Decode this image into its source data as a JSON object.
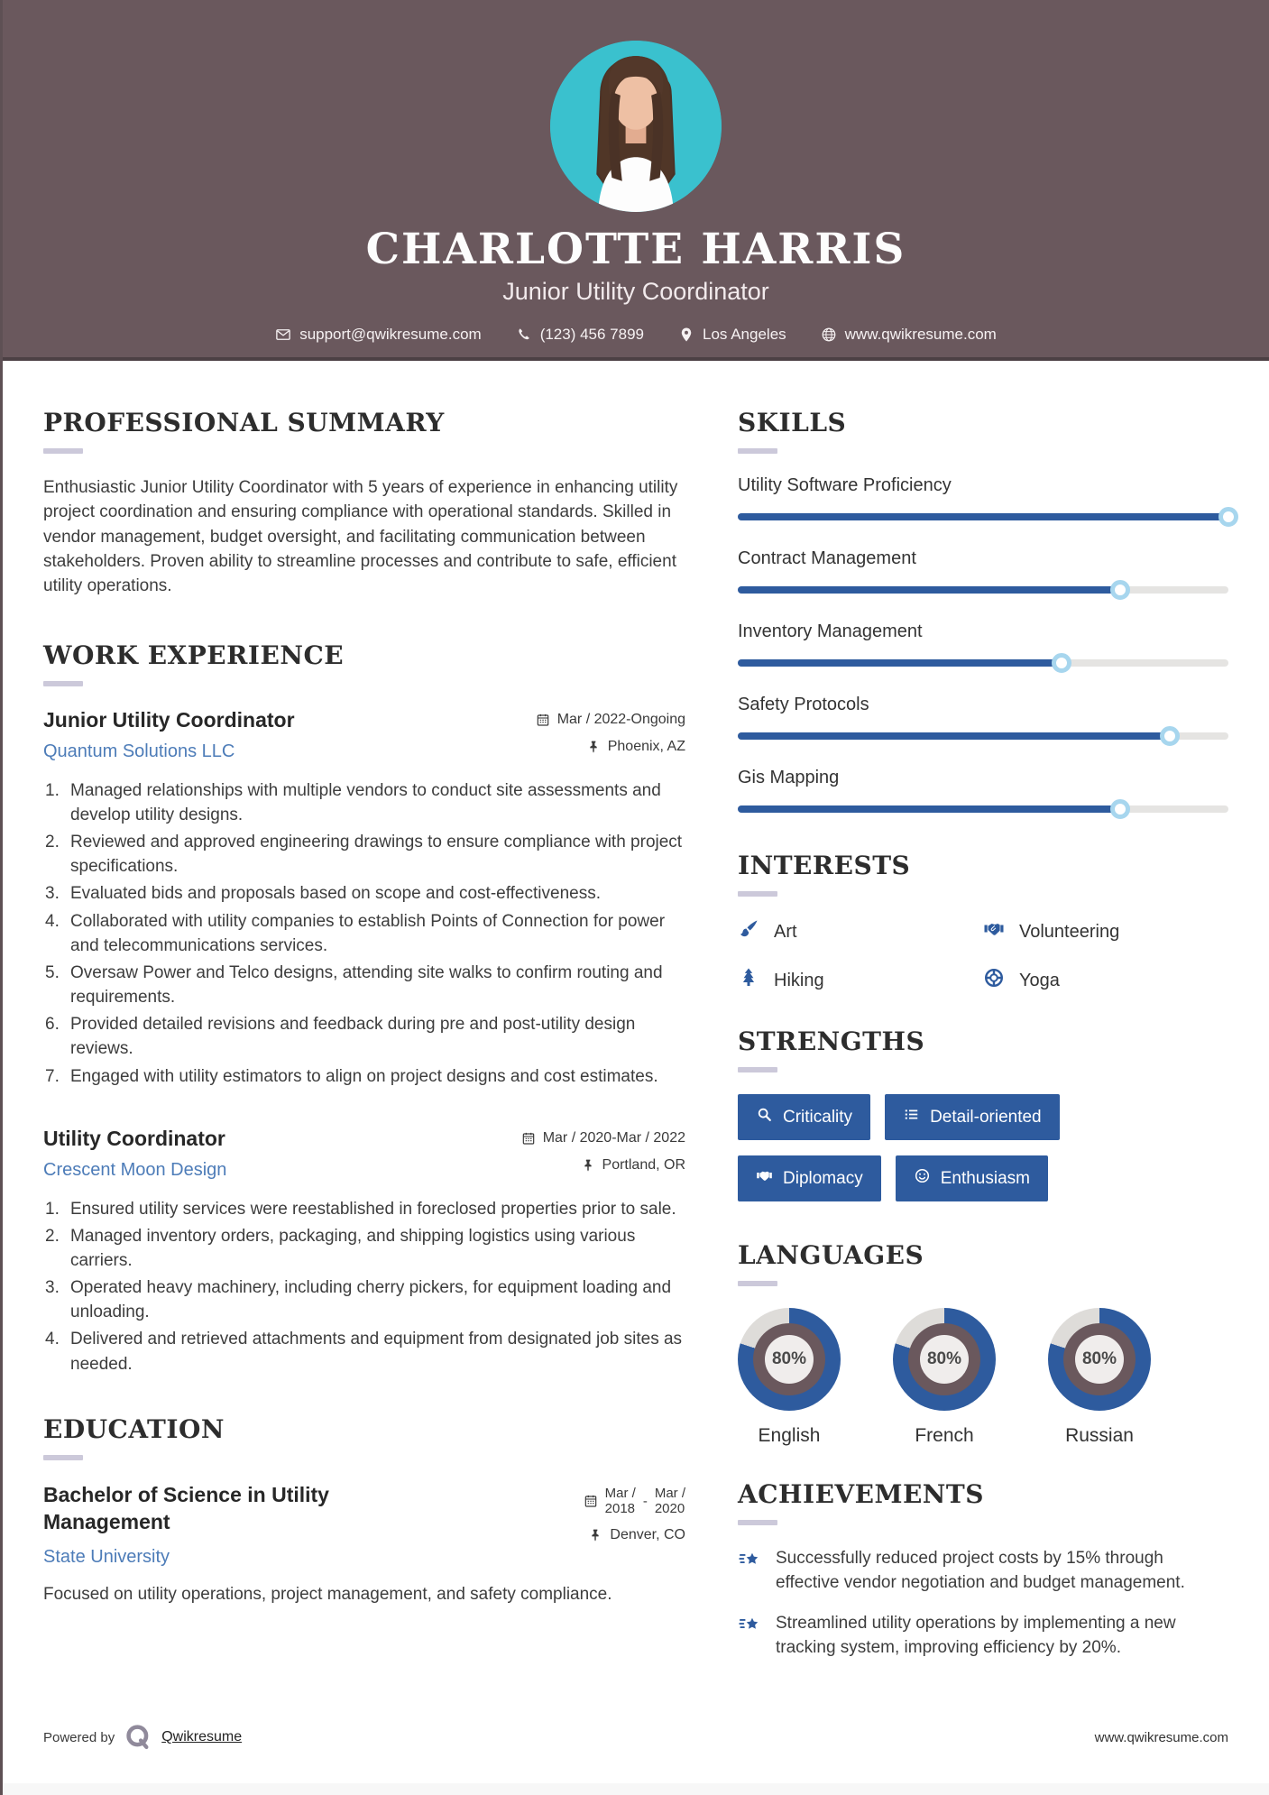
{
  "colors": {
    "header_bg": "#6a585d",
    "accent": "#2e5b9e",
    "photo_bg": "#3ac1ce",
    "link_blue": "#4d7cb8",
    "donut_rest": "#dedcd9"
  },
  "header": {
    "name": "CHARLOTTE HARRIS",
    "title": "Junior Utility Coordinator",
    "contact": [
      {
        "icon": "email-icon",
        "text": "support@qwikresume.com"
      },
      {
        "icon": "phone-icon",
        "text": "(123) 456 7899"
      },
      {
        "icon": "location-pin-icon",
        "text": "Los Angeles"
      },
      {
        "icon": "globe-icon",
        "text": "www.qwikresume.com"
      }
    ]
  },
  "summary": {
    "heading": "PROFESSIONAL SUMMARY",
    "text": "Enthusiastic Junior Utility Coordinator with 5 years of experience in enhancing utility project coordination and ensuring compliance with operational standards. Skilled in vendor management, budget oversight, and facilitating communication between stakeholders. Proven ability to streamline processes and contribute to safe, efficient utility operations."
  },
  "work": {
    "heading": "WORK EXPERIENCE",
    "jobs": [
      {
        "title": "Junior Utility Coordinator",
        "company": "Quantum Solutions LLC",
        "dates": "Mar / 2022-Ongoing",
        "location": "Phoenix, AZ",
        "bullets": [
          "Managed relationships with multiple vendors to conduct site assessments and develop utility designs.",
          "Reviewed and approved engineering drawings to ensure compliance with project specifications.",
          "Evaluated bids and proposals based on scope and cost-effectiveness.",
          "Collaborated with utility companies to establish Points of Connection for power and telecommunications services.",
          "Oversaw Power and Telco designs, attending site walks to confirm routing and requirements.",
          "Provided detailed revisions and feedback during pre and post-utility design reviews.",
          "Engaged with utility estimators to align on project designs and cost estimates."
        ]
      },
      {
        "title": "Utility Coordinator",
        "company": "Crescent Moon Design",
        "dates": "Mar / 2020-Mar / 2022",
        "location": "Portland, OR",
        "bullets": [
          "Ensured utility services were reestablished in foreclosed properties prior to sale.",
          "Managed inventory orders, packaging, and shipping logistics using various carriers.",
          "Operated heavy machinery, including cherry pickers, for equipment loading and unloading.",
          "Delivered and retrieved attachments and equipment from designated job sites as needed."
        ]
      }
    ]
  },
  "education": {
    "heading": "EDUCATION",
    "degree": "Bachelor of Science in Utility Management",
    "school": "State University",
    "date_start_top": "Mar /",
    "date_start_bottom": "2018",
    "date_separator": "-",
    "date_end_top": "Mar /",
    "date_end_bottom": "2020",
    "location": "Denver, CO",
    "description": "Focused on utility operations, project management, and safety compliance."
  },
  "skills": {
    "heading": "SKILLS",
    "items": [
      {
        "label": "Utility Software Proficiency",
        "percent": 100
      },
      {
        "label": "Contract Management",
        "percent": 78
      },
      {
        "label": "Inventory Management",
        "percent": 66
      },
      {
        "label": "Safety Protocols",
        "percent": 88
      },
      {
        "label": "Gis Mapping",
        "percent": 78
      }
    ]
  },
  "interests": {
    "heading": "INTERESTS",
    "items": [
      {
        "icon": "paintbrush-icon",
        "label": "Art"
      },
      {
        "icon": "handshake-icon",
        "label": "Volunteering"
      },
      {
        "icon": "pine-tree-icon",
        "label": "Hiking"
      },
      {
        "icon": "lifebuoy-icon",
        "label": "Yoga"
      }
    ]
  },
  "strengths": {
    "heading": "STRENGTHS",
    "items": [
      {
        "icon": "magnifier-icon",
        "label": "Criticality"
      },
      {
        "icon": "list-icon",
        "label": "Detail-oriented"
      },
      {
        "icon": "handshake-icon",
        "label": "Diplomacy"
      },
      {
        "icon": "smiley-icon",
        "label": "Enthusiasm"
      }
    ]
  },
  "languages": {
    "heading": "LANGUAGES",
    "items": [
      {
        "label": "English",
        "percent": 80,
        "percent_label": "80%"
      },
      {
        "label": "French",
        "percent": 80,
        "percent_label": "80%"
      },
      {
        "label": "Russian",
        "percent": 80,
        "percent_label": "80%"
      }
    ]
  },
  "achievements": {
    "heading": "ACHIEVEMENTS",
    "items": [
      "Successfully reduced project costs by 15% through effective vendor negotiation and budget management.",
      "Streamlined utility operations by implementing a new tracking system, improving efficiency by 20%."
    ]
  },
  "footer": {
    "powered_by": "Powered by",
    "brand": "Qwikresume",
    "website": "www.qwikresume.com"
  }
}
